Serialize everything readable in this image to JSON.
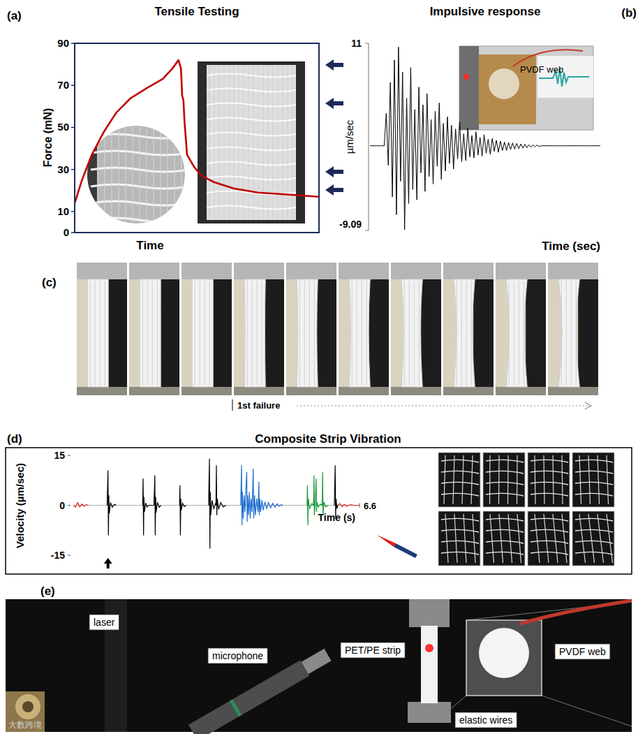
{
  "chart_data": [
    {
      "type": "line",
      "panel": "(a)",
      "title": "Tensile Testing",
      "x_label": "Time",
      "y_label": "Force (mN)",
      "x": [
        0,
        3,
        7,
        12,
        17,
        23,
        30,
        36,
        40,
        42.5,
        43.5,
        44,
        44.5,
        45,
        46,
        47.5,
        49,
        52,
        57,
        65,
        75,
        88,
        100
      ],
      "values": [
        14,
        25,
        37,
        48,
        57,
        64,
        69,
        73,
        78,
        82,
        78,
        65,
        63,
        52,
        37,
        34,
        31,
        27,
        24,
        21,
        19,
        18,
        17
      ],
      "color": "#c00000",
      "xlim": [
        0,
        100
      ],
      "ylim": [
        0,
        90
      ],
      "yticks": [
        0,
        10,
        30,
        50,
        70,
        90
      ],
      "tick_labels": "y"
    },
    {
      "type": "line",
      "panel": "(b)",
      "title": "Impulsive response",
      "x_label": "Time (sec)",
      "y_label": "µm/sec",
      "values": [
        0,
        0,
        0,
        0,
        0,
        0,
        0,
        0,
        3.5,
        -2.1,
        6.8,
        -5.5,
        9.2,
        -7.4,
        10.6,
        -3.8,
        7.9,
        -9,
        5.1,
        -6.2,
        8.4,
        -4.7,
        3.9,
        -5.8,
        6.3,
        -2.9,
        4.4,
        -4.9,
        5.6,
        -3.3,
        2.8,
        -4.1,
        3.7,
        -2.2,
        4.6,
        -3.6,
        2.4,
        -2.7,
        3.1,
        -1.9,
        2.2,
        -2.5,
        1.8,
        -1.4,
        2.6,
        -1.7,
        1.3,
        -1.6,
        1.9,
        -1.2,
        1.1,
        -1.3,
        1.5,
        -1,
        0.9,
        -1.1,
        1.2,
        -0.8,
        0.7,
        -0.9,
        0.8,
        -0.6,
        0.6,
        -0.7,
        0.5,
        -0.5,
        0.4,
        -0.5,
        0.35,
        -0.4,
        0.3,
        -0.35,
        0.25,
        -0.3,
        0.2,
        -0.25,
        0.15,
        -0.2,
        0.1,
        -0.15,
        0.1,
        -0.1,
        0.08,
        -0.08,
        0,
        0,
        0,
        0,
        0,
        0,
        0,
        0,
        0,
        0,
        0,
        0,
        0,
        0,
        0,
        0,
        0,
        0,
        0,
        0,
        0,
        0,
        0,
        0,
        0,
        0,
        0,
        0,
        0,
        0
      ],
      "color": "#000000",
      "ylim": [
        -9.09,
        11
      ],
      "yticks": [
        -9.09,
        11
      ],
      "tick_labels": "y"
    },
    {
      "type": "line",
      "panel": "(d)",
      "title": "Composite Strip Vibration",
      "x_label": "Time (s)",
      "y_label": "Velocity (µm/sec)",
      "xlim": [
        0,
        6.6
      ],
      "xticks": [
        6.6
      ],
      "ylim": [
        -15,
        15
      ],
      "yticks": [
        -15,
        0,
        15
      ],
      "series": [
        {
          "color": "#e0201b",
          "x": [
            0,
            0.05,
            0.1,
            0.15,
            0.2,
            0.25,
            0.3,
            0.35,
            0.5,
            6.1,
            6.15,
            6.2,
            6.25,
            6.3,
            6.4,
            6.5,
            6.6
          ],
          "values": [
            0,
            -0.6,
            0.8,
            -0.5,
            0.4,
            -0.3,
            0.2,
            0,
            null,
            0,
            0.5,
            -0.4,
            0.3,
            -0.3,
            0.2,
            -0.1,
            0
          ]
        },
        {
          "color": "#000000",
          "x": [
            0.78,
            0.8,
            0.81,
            0.82,
            0.83,
            0.86,
            0.9,
            0.95,
            0.99,
            1.2,
            1.6,
            1.61,
            1.62,
            1.63,
            1.64,
            1.67,
            1.7,
            1.74,
            1.86,
            1.88,
            1.89,
            1.9,
            1.91,
            1.94,
            1.98,
            2.02,
            2.2,
            2.45,
            2.46,
            2.47,
            2.48,
            2.49,
            2.52,
            2.56,
            2.6,
            2.8,
            3.12,
            3.14,
            3.15,
            3.16,
            3.17,
            3.2,
            3.24,
            3.28,
            3.29,
            3.3,
            3.31,
            3.32,
            3.35,
            3.4,
            3.46,
            3.52,
            3.7,
            6.02,
            6.04,
            6.05,
            6.06,
            6.08,
            6.1
          ],
          "values": [
            0,
            10.5,
            -9,
            3,
            -2.5,
            0.8,
            -0.6,
            0.3,
            0,
            null,
            0,
            8,
            -9,
            2.5,
            -2,
            0.7,
            -0.5,
            0,
            0,
            9,
            -9,
            2.5,
            -2.2,
            0.9,
            -0.6,
            0,
            null,
            0,
            6,
            -9,
            2,
            -1.5,
            0.6,
            -0.4,
            0,
            null,
            0,
            14,
            -13,
            4,
            -3,
            1.5,
            -1,
            0.5,
            0,
            12,
            -3,
            2,
            -1.2,
            0.8,
            -0.5,
            0,
            null,
            0,
            12,
            -4,
            2,
            -1,
            0
          ]
        },
        {
          "color": "#1f6fd1",
          "x": [
            3.86,
            3.88,
            3.89,
            3.9,
            3.92,
            3.94,
            3.96,
            3.98,
            4.0,
            4.01,
            4.02,
            4.04,
            4.06,
            4.08,
            4.1,
            4.12,
            4.14,
            4.15,
            4.16,
            4.18,
            4.2,
            4.23,
            4.26,
            4.28,
            4.29,
            4.3,
            4.32,
            4.35,
            4.38,
            4.42,
            4.46,
            4.5,
            4.55,
            4.6,
            4.65,
            4.7,
            4.75,
            4.8,
            4.83
          ],
          "values": [
            0,
            12,
            -6,
            4,
            -4,
            3,
            -2,
            5,
            10,
            -5,
            3,
            -3,
            4,
            -4,
            2,
            -2,
            6,
            11,
            -4,
            3,
            -3,
            2,
            -2,
            7,
            -3,
            2,
            -2,
            1.5,
            -1.5,
            1,
            -1,
            0.8,
            -0.8,
            0.6,
            -0.6,
            0.4,
            -0.3,
            0.2,
            0
          ]
        },
        {
          "color": "#1a9a3a",
          "x": [
            5.39,
            5.4,
            5.41,
            5.42,
            5.45,
            5.5,
            5.54,
            5.55,
            5.56,
            5.58,
            5.6,
            5.61,
            5.62,
            5.65,
            5.7,
            5.74,
            5.75,
            5.76,
            5.78,
            5.82,
            5.88
          ],
          "values": [
            0,
            6,
            -6,
            2,
            -1,
            0.5,
            0,
            9,
            -3,
            1,
            8,
            -2,
            1,
            -0.5,
            0.4,
            0,
            10,
            -3,
            1,
            -0.5,
            0
          ]
        }
      ]
    }
  ],
  "figure": {
    "panel_b_inset_label": "PVDF web",
    "panel_c": {
      "label": "(c)",
      "annotation": "1st failure"
    },
    "panel_e": {
      "label": "(e)",
      "callouts": [
        "laser",
        "microphone",
        "PET/PE strip",
        "PVDF web",
        "elastic wires"
      ]
    },
    "watermark": "大数跨境"
  }
}
